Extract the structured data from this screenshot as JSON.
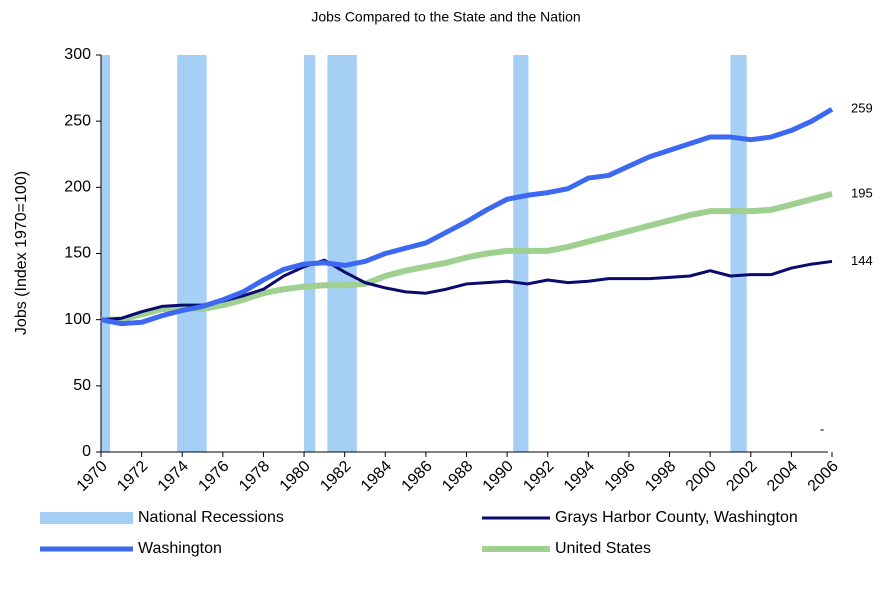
{
  "chart_data": {
    "type": "line",
    "title": "Jobs Compared to the State and the Nation",
    "y_label": "Jobs (Index 1970=100)",
    "x": [
      1970,
      1971,
      1972,
      1973,
      1974,
      1975,
      1976,
      1977,
      1978,
      1979,
      1980,
      1981,
      1982,
      1983,
      1984,
      1985,
      1986,
      1987,
      1988,
      1989,
      1990,
      1991,
      1992,
      1993,
      1994,
      1995,
      1996,
      1997,
      1998,
      1999,
      2000,
      2001,
      2002,
      2003,
      2004,
      2005,
      2006
    ],
    "series": [
      {
        "name": "Grays Harbor County, Washington",
        "color": "#0b0b6e",
        "width": 3,
        "values": [
          100,
          101,
          106,
          110,
          111,
          111,
          114,
          118,
          123,
          133,
          140,
          145,
          136,
          128,
          124,
          121,
          120,
          123,
          127,
          128,
          129,
          127,
          130,
          128,
          129,
          131,
          131,
          131,
          132,
          133,
          137,
          133,
          134,
          134,
          139,
          142,
          144
        ]
      },
      {
        "name": "Washington",
        "color": "#3d68f2",
        "width": 5,
        "values": [
          100,
          97,
          98,
          103,
          107,
          110,
          115,
          121,
          130,
          138,
          142,
          143,
          141,
          144,
          150,
          154,
          158,
          166,
          174,
          183,
          191,
          194,
          196,
          199,
          207,
          209,
          216,
          223,
          228,
          233,
          238,
          238,
          236,
          238,
          243,
          250,
          259
        ]
      },
      {
        "name": "United States",
        "color": "#9fd08f",
        "width": 6,
        "values": [
          100,
          100,
          104,
          108,
          109,
          108,
          111,
          115,
          120,
          123,
          125,
          126,
          126,
          127,
          133,
          137,
          140,
          143,
          147,
          150,
          152,
          152,
          152,
          155,
          159,
          163,
          167,
          171,
          175,
          179,
          182,
          182,
          182,
          183,
          187,
          191,
          195
        ]
      }
    ],
    "recessions": {
      "name": "National Recessions",
      "color": "#a6cff6",
      "periods": [
        [
          1970,
          1970.45
        ],
        [
          1973.75,
          1975.2
        ],
        [
          1980,
          1980.55
        ],
        [
          1981.15,
          1982.6
        ],
        [
          1990.3,
          1991.05
        ],
        [
          2001,
          2001.8
        ]
      ]
    },
    "annotation": "-",
    "xlim": [
      1970,
      2006
    ],
    "xticks": [
      1970,
      1972,
      1974,
      1976,
      1978,
      1980,
      1982,
      1984,
      1986,
      1988,
      1990,
      1992,
      1994,
      1996,
      1998,
      2000,
      2002,
      2004,
      2006
    ],
    "ylim": [
      0,
      300
    ],
    "yticks": [
      0,
      50,
      100,
      150,
      200,
      250,
      300
    ]
  }
}
